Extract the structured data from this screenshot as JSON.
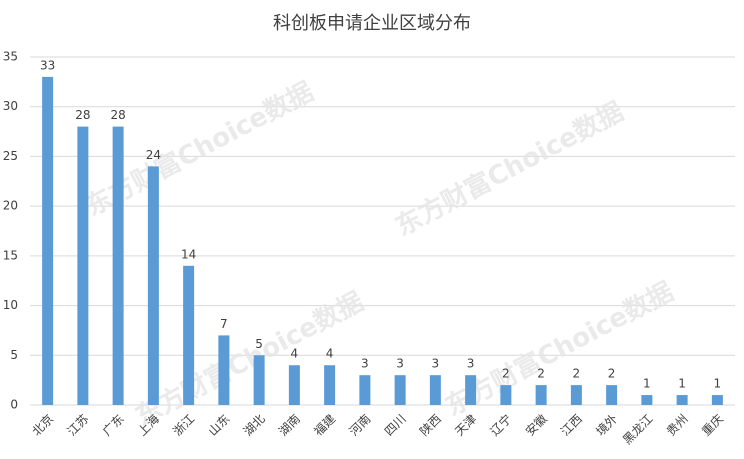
{
  "chart_data": {
    "type": "bar",
    "title": "科创板申请企业区域分布",
    "categories": [
      "北京",
      "江苏",
      "广东",
      "上海",
      "浙江",
      "山东",
      "湖北",
      "湖南",
      "福建",
      "河南",
      "四川",
      "陕西",
      "天津",
      "辽宁",
      "安徽",
      "江西",
      "境外",
      "黑龙江",
      "贵州",
      "重庆"
    ],
    "values": [
      33,
      28,
      28,
      24,
      14,
      7,
      5,
      4,
      4,
      3,
      3,
      3,
      3,
      2,
      2,
      2,
      2,
      1,
      1,
      1
    ],
    "color": "#5b9bd5",
    "ylim": [
      0,
      35
    ],
    "yticks": [
      0,
      5,
      10,
      15,
      20,
      25,
      30,
      35
    ],
    "grid": true,
    "watermark": "东方财富Choice数据"
  }
}
